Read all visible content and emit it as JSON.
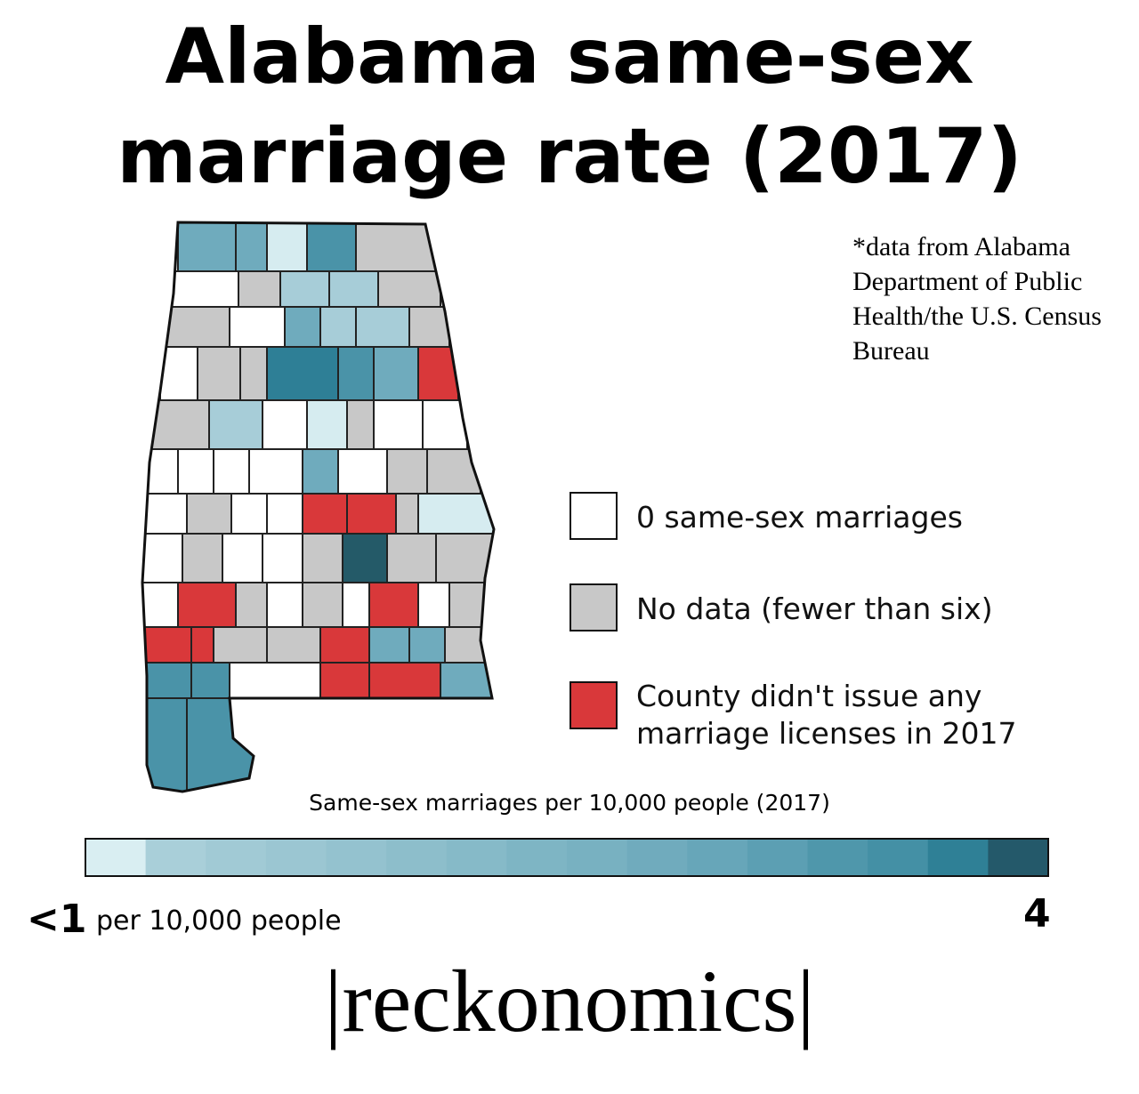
{
  "header": {
    "title": "Alabama same-sex marriage rate (2017)"
  },
  "source_note": "*data from Alabama Department of Public Health/the U.S. Census Bureau",
  "legend": [
    {
      "label": "0 same-sex marriages"
    },
    {
      "label": "No data (fewer than six)"
    },
    {
      "label": "County didn't issue any marriage licenses in 2017"
    }
  ],
  "scale": {
    "title": "Same-sex marriages per 10,000 people (2017)",
    "min_label": "<1",
    "min_unit": "per 10,000 people",
    "max_label": 4
  },
  "brand": "|reckonomics|"
}
